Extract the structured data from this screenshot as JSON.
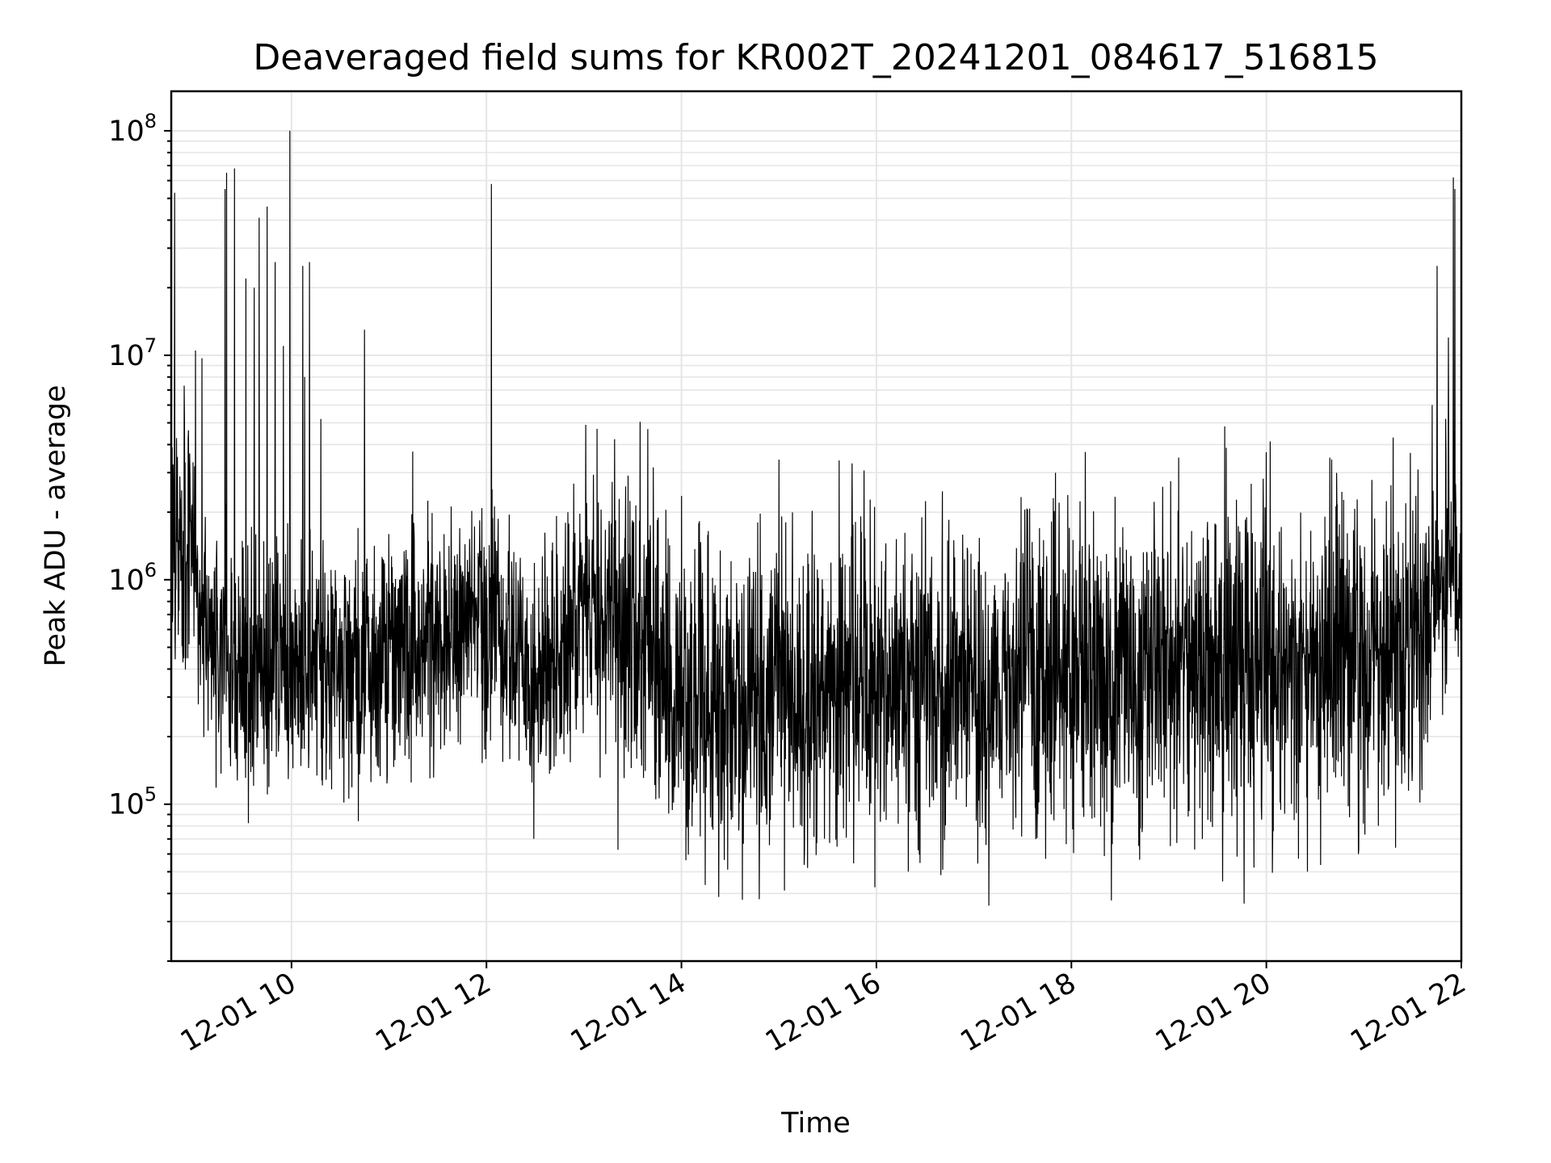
{
  "chart_data": {
    "type": "line",
    "title": "Deaveraged field sums for KR002T_20241201_084617_516815",
    "xlabel": "Time",
    "ylabel": "Peak ADU - average",
    "yscale": "log",
    "ylim": [
      20000,
      150000000
    ],
    "xlim": [
      "2024-12-01 08:46",
      "2024-12-01 22:00"
    ],
    "grid": true,
    "line_color": "#000000",
    "grid_color": "#e6e6e6",
    "x_tick_labels": [
      {
        "t": "2024-12-01 10:00",
        "label": "12-01 10"
      },
      {
        "t": "2024-12-01 12:00",
        "label": "12-01 12"
      },
      {
        "t": "2024-12-01 14:00",
        "label": "12-01 14"
      },
      {
        "t": "2024-12-01 16:00",
        "label": "12-01 16"
      },
      {
        "t": "2024-12-01 18:00",
        "label": "12-01 18"
      },
      {
        "t": "2024-12-01 20:00",
        "label": "12-01 20"
      },
      {
        "t": "2024-12-01 22:00",
        "label": "12-01 22"
      }
    ],
    "y_tick_labels": [
      {
        "value": 100000,
        "base": "10",
        "exp": "5"
      },
      {
        "value": 1000000,
        "base": "10",
        "exp": "6"
      },
      {
        "value": 10000000,
        "base": "10",
        "exp": "7"
      },
      {
        "value": 100000000,
        "base": "10",
        "exp": "8"
      }
    ],
    "series": [
      {
        "baseline_points": [
          {
            "t": "2024-12-01 08:46",
            "y": 1500000
          },
          {
            "t": "2024-12-01 09:00",
            "y": 1200000
          },
          {
            "t": "2024-12-01 09:10",
            "y": 500000
          },
          {
            "t": "2024-12-01 09:30",
            "y": 400000
          },
          {
            "t": "2024-12-01 10:00",
            "y": 400000
          },
          {
            "t": "2024-12-01 11:00",
            "y": 450000
          },
          {
            "t": "2024-12-01 12:00",
            "y": 600000
          },
          {
            "t": "2024-12-01 12:30",
            "y": 400000
          },
          {
            "t": "2024-12-01 13:00",
            "y": 700000
          },
          {
            "t": "2024-12-01 13:40",
            "y": 600000
          },
          {
            "t": "2024-12-01 14:00",
            "y": 300000
          },
          {
            "t": "2024-12-01 15:00",
            "y": 300000
          },
          {
            "t": "2024-12-01 16:00",
            "y": 350000
          },
          {
            "t": "2024-12-01 17:00",
            "y": 350000
          },
          {
            "t": "2024-12-01 18:00",
            "y": 400000
          },
          {
            "t": "2024-12-01 19:00",
            "y": 400000
          },
          {
            "t": "2024-12-01 20:00",
            "y": 450000
          },
          {
            "t": "2024-12-01 21:00",
            "y": 450000
          },
          {
            "t": "2024-12-01 21:30",
            "y": 500000
          },
          {
            "t": "2024-12-01 21:45",
            "y": 1000000
          },
          {
            "t": "2024-12-01 22:00",
            "y": 1100000
          }
        ],
        "spikes": [
          {
            "t": "2024-12-01 08:48",
            "y": 53000000
          },
          {
            "t": "2024-12-01 09:01",
            "y": 10500000
          },
          {
            "t": "2024-12-01 09:05",
            "y": 9700000
          },
          {
            "t": "2024-12-01 09:19",
            "y": 55000000
          },
          {
            "t": "2024-12-01 09:20",
            "y": 65000000
          },
          {
            "t": "2024-12-01 09:25",
            "y": 68000000
          },
          {
            "t": "2024-12-01 09:32",
            "y": 22000000
          },
          {
            "t": "2024-12-01 09:37",
            "y": 20000000
          },
          {
            "t": "2024-12-01 09:40",
            "y": 41000000
          },
          {
            "t": "2024-12-01 09:45",
            "y": 46000000
          },
          {
            "t": "2024-12-01 09:50",
            "y": 26000000
          },
          {
            "t": "2024-12-01 09:55",
            "y": 11000000
          },
          {
            "t": "2024-12-01 09:59",
            "y": 100000000
          },
          {
            "t": "2024-12-01 10:07",
            "y": 25000000
          },
          {
            "t": "2024-12-01 10:08",
            "y": 8000000
          },
          {
            "t": "2024-12-01 10:11",
            "y": 26000000
          },
          {
            "t": "2024-12-01 10:18",
            "y": 5200000
          },
          {
            "t": "2024-12-01 10:45",
            "y": 13000000
          },
          {
            "t": "2024-12-01 12:03",
            "y": 58000000
          },
          {
            "t": "2024-12-01 13:01",
            "y": 4900000
          },
          {
            "t": "2024-12-01 13:08",
            "y": 4700000
          },
          {
            "t": "2024-12-01 15:37",
            "y": 3400000
          },
          {
            "t": "2024-12-01 15:45",
            "y": 3300000
          },
          {
            "t": "2024-12-01 19:06",
            "y": 3500000
          },
          {
            "t": "2024-12-01 20:00",
            "y": 3700000
          },
          {
            "t": "2024-12-01 20:39",
            "y": 3500000
          },
          {
            "t": "2024-12-01 21:18",
            "y": 4300000
          },
          {
            "t": "2024-12-01 21:42",
            "y": 6000000
          },
          {
            "t": "2024-12-01 21:45",
            "y": 25000000
          },
          {
            "t": "2024-12-01 21:52",
            "y": 12000000
          },
          {
            "t": "2024-12-01 21:55",
            "y": 62000000
          },
          {
            "t": "2024-12-01 21:56",
            "y": 55000000
          }
        ]
      }
    ]
  }
}
